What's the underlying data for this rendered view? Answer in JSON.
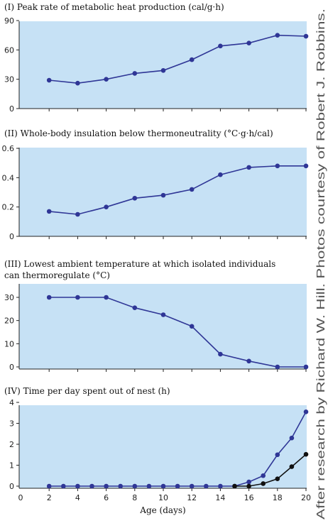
{
  "figure": {
    "credit": "After research by Richard W. Hill. Photos courtesy of Robert J. Robbins.",
    "colors": {
      "panel_bg": "#c6e1f5",
      "axis": "#222222",
      "series_blue": "#2f3696",
      "series_black": "#111111"
    }
  },
  "chart_data": [
    {
      "type": "line",
      "title_lines": [
        "(I)  Peak rate of metabolic heat production (cal/g·h)"
      ],
      "xlabel": "",
      "ylabel": "",
      "xlim": [
        2,
        20
      ],
      "ylim": [
        0,
        90
      ],
      "yticks": [
        0,
        30,
        60,
        90
      ],
      "grid": false,
      "series": [
        {
          "x": [
            2,
            4,
            6,
            8,
            10,
            12,
            14,
            16,
            18,
            20
          ],
          "y": [
            29,
            26,
            30,
            36,
            39,
            50,
            64,
            67,
            75,
            74
          ]
        }
      ]
    },
    {
      "type": "line",
      "title_lines": [
        "(II)  Whole-body insulation below thermoneutrality (°C·g·h/cal)"
      ],
      "xlabel": "",
      "ylabel": "",
      "xlim": [
        2,
        20
      ],
      "ylim": [
        0,
        0.6
      ],
      "yticks": [
        0,
        0.2,
        0.4,
        0.6
      ],
      "grid": false,
      "series": [
        {
          "x": [
            2,
            4,
            6,
            8,
            10,
            12,
            14,
            16,
            18,
            20
          ],
          "y": [
            0.17,
            0.15,
            0.2,
            0.26,
            0.28,
            0.32,
            0.42,
            0.47,
            0.48,
            0.48
          ]
        }
      ]
    },
    {
      "type": "line",
      "title_lines": [
        "(III)  Lowest ambient temperature at which isolated individuals",
        "can thermoregulate (°C)"
      ],
      "xlabel": "",
      "ylabel": "",
      "xlim": [
        2,
        20
      ],
      "ylim": [
        0,
        30
      ],
      "yticks": [
        0,
        10,
        20,
        30
      ],
      "grid": false,
      "series": [
        {
          "x": [
            2,
            4,
            6,
            8,
            10,
            12,
            14,
            16,
            18,
            20
          ],
          "y": [
            30,
            30,
            30,
            25.5,
            22.5,
            17.5,
            5.5,
            2.5,
            0,
            0
          ]
        }
      ]
    },
    {
      "type": "line",
      "title_lines": [
        "(IV)  Time per day spent out of nest (h)"
      ],
      "xlabel": "Age (days)",
      "ylabel": "",
      "xlim": [
        0,
        20
      ],
      "ylim": [
        0,
        4
      ],
      "xticks": [
        0,
        2,
        4,
        6,
        8,
        10,
        12,
        14,
        16,
        18,
        20
      ],
      "yticks": [
        0,
        1,
        2,
        3,
        4
      ],
      "grid": false,
      "series": [
        {
          "color": "blue",
          "x": [
            2,
            3,
            4,
            5,
            6,
            7,
            8,
            9,
            10,
            11,
            12,
            13,
            14,
            15,
            16,
            17,
            18,
            19,
            20
          ],
          "y": [
            0,
            0,
            0,
            0,
            0,
            0,
            0,
            0,
            0,
            0,
            0,
            0,
            0,
            0,
            0.2,
            0.5,
            1.5,
            2.3,
            3.55
          ]
        },
        {
          "color": "black",
          "x": [
            15,
            16,
            17,
            18,
            19,
            20
          ],
          "y": [
            0,
            0,
            0.12,
            0.35,
            0.93,
            1.52
          ]
        }
      ]
    }
  ]
}
